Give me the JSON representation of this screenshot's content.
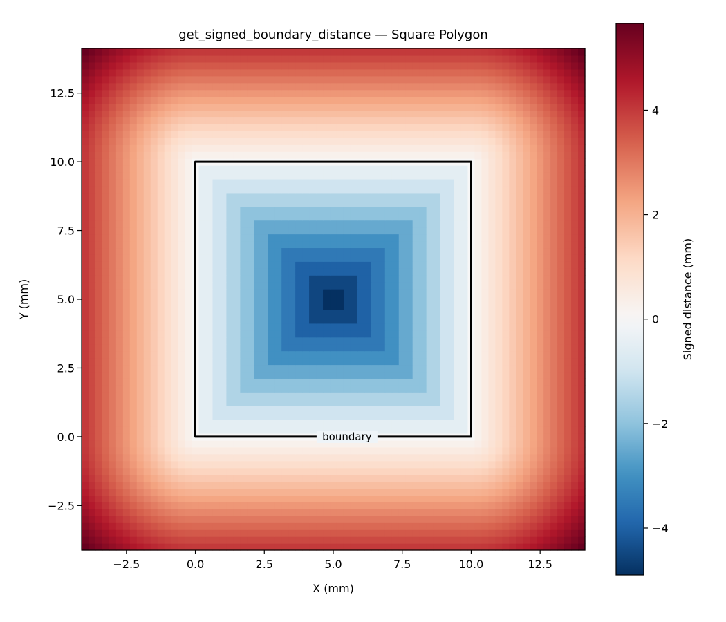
{
  "chart_data": {
    "type": "heatmap",
    "title": "get_signed_boundary_distance — Square Polygon",
    "xlabel": "X (mm)",
    "ylabel": "Y (mm)",
    "colorbar_label": "Signed distance (mm)",
    "colormap": "RdBu_r",
    "xlim": [
      -4.125,
      14.125
    ],
    "ylim": [
      -4.125,
      14.125
    ],
    "grid_resolution": 0.25,
    "x_ticks": [
      -2.5,
      0.0,
      2.5,
      5.0,
      7.5,
      10.0,
      12.5
    ],
    "y_ticks": [
      -2.5,
      0.0,
      2.5,
      5.0,
      7.5,
      10.0,
      12.5
    ],
    "x_tick_labels": [
      "−2.5",
      "0.0",
      "2.5",
      "5.0",
      "7.5",
      "10.0",
      "12.5"
    ],
    "y_tick_labels": [
      "−2.5",
      "0.0",
      "2.5",
      "5.0",
      "7.5",
      "10.0",
      "12.5"
    ],
    "color_range": [
      -4.9,
      5.66
    ],
    "colorbar_ticks": [
      4,
      2,
      0,
      -2,
      -4
    ],
    "colorbar_tick_labels": [
      "4",
      "2",
      "0",
      "−2",
      "−4"
    ],
    "polygon": {
      "vertices": [
        [
          0,
          0
        ],
        [
          10,
          0
        ],
        [
          10,
          10
        ],
        [
          0,
          10
        ]
      ],
      "label": "boundary",
      "label_position": [
        5.5,
        0
      ]
    },
    "inside_step": 0.5,
    "grid": false
  }
}
